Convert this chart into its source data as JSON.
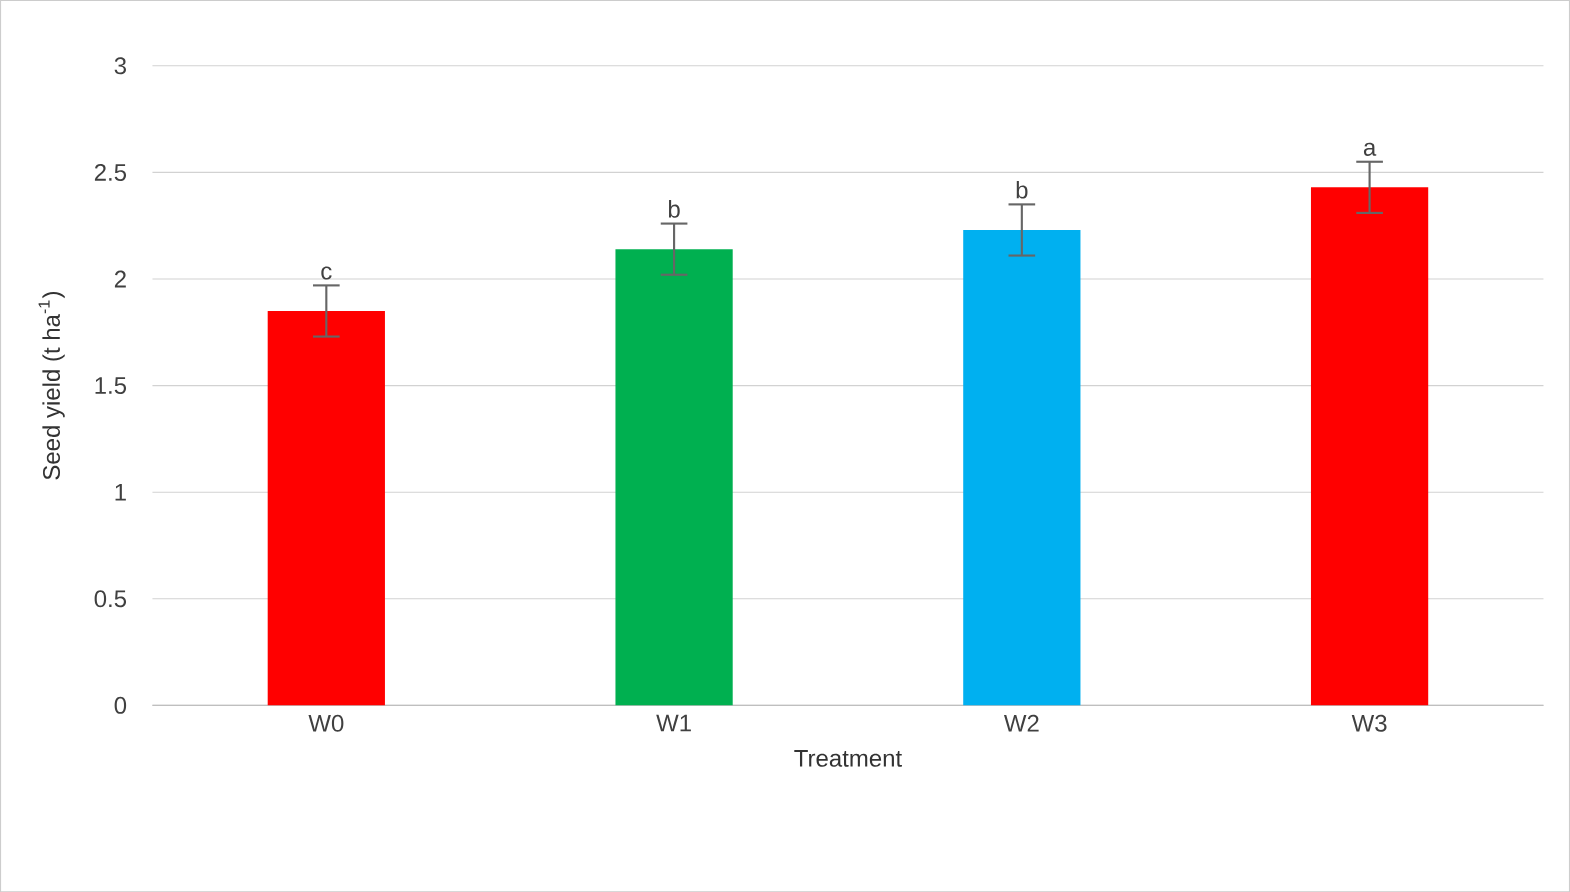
{
  "chart_data": {
    "type": "bar",
    "xlabel": "Treatment",
    "ylabel": "Seed yield (t ha$^{-1}$)",
    "categories": [
      "W0",
      "W1",
      "W2",
      "W3"
    ],
    "values": [
      1.85,
      2.14,
      2.23,
      2.43
    ],
    "colors": [
      "#ff0000",
      "#00b050",
      "#00b0f0",
      "#ff0000"
    ],
    "errors": [
      0.12,
      0.12,
      0.12,
      0.12
    ],
    "ylim": [
      0,
      3
    ],
    "yticks": [
      0,
      0.5,
      1,
      1.5,
      2,
      2.5,
      3
    ],
    "grid": "y",
    "annotations": [
      {
        "text": "c",
        "x": "W0",
        "y": 1.97
      },
      {
        "text": "b",
        "x": "W1",
        "y": 2.26
      },
      {
        "text": "b",
        "x": "W2",
        "y": 2.35
      },
      {
        "text": "a",
        "x": "W3",
        "y": 2.55
      }
    ]
  }
}
